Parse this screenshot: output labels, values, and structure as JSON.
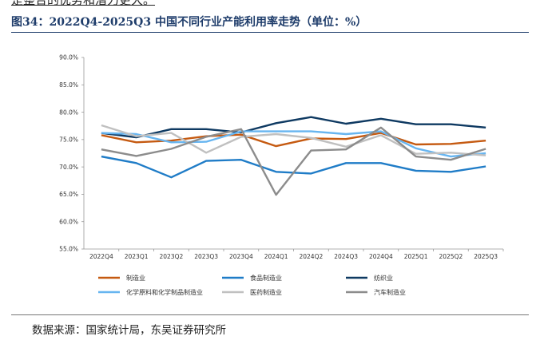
{
  "header": {
    "cut_text": "是整合的优势和潜力更大。",
    "title": "图34：2022Q4-2025Q3 中国不同行业产能利用率走势（单位：%）"
  },
  "footer": {
    "source": "数据来源：国家统计局，东吴证券研究所"
  },
  "chart_data": {
    "type": "line",
    "title": "2022Q4-2025Q3 中国不同行业产能利用率走势（单位：%）",
    "xlabel": "",
    "ylabel": "",
    "ylim": [
      55,
      90
    ],
    "ytick_values": [
      55,
      60,
      65,
      70,
      75,
      80,
      85,
      90
    ],
    "ytick_labels": [
      "55.0%",
      "60.0%",
      "65.0%",
      "70.0%",
      "75.0%",
      "80.0%",
      "85.0%",
      "90.0%"
    ],
    "grid": false,
    "legend_position": "bottom",
    "categories": [
      "2022Q4",
      "2023Q1",
      "2023Q2",
      "2023Q3",
      "2023Q4",
      "2024Q1",
      "2024Q2",
      "2024Q3",
      "2024Q4",
      "2025Q1",
      "2025Q2",
      "2025Q3"
    ],
    "series": [
      {
        "name": "制造业",
        "color": "#c55a11",
        "values": [
          75.8,
          74.5,
          74.8,
          75.6,
          75.9,
          73.8,
          75.2,
          75.1,
          76.2,
          74.1,
          74.2,
          74.8
        ]
      },
      {
        "name": "食品制造业",
        "color": "#1f7cc7",
        "values": [
          71.9,
          70.7,
          68.1,
          71.1,
          71.3,
          69.1,
          68.8,
          70.7,
          70.7,
          69.3,
          69.1,
          70.1
        ]
      },
      {
        "name": "纺织业",
        "color": "#0f3a62",
        "values": [
          76.2,
          75.4,
          76.9,
          76.9,
          76.3,
          78.0,
          79.1,
          77.9,
          78.8,
          77.8,
          77.8,
          77.2
        ]
      },
      {
        "name": "化学原料和化学制品制造业",
        "color": "#67b5f0",
        "values": [
          76.2,
          76.0,
          74.5,
          74.6,
          76.5,
          76.5,
          76.5,
          76.0,
          76.5,
          73.4,
          71.9,
          72.5
        ]
      },
      {
        "name": "医药制造业",
        "color": "#c0c0c0",
        "values": [
          77.6,
          75.6,
          76.2,
          72.6,
          75.5,
          76.0,
          75.3,
          73.7,
          75.8,
          72.4,
          72.6,
          72.1
        ]
      },
      {
        "name": "汽车制造业",
        "color": "#8c8c8c",
        "values": [
          73.2,
          72.0,
          73.3,
          75.5,
          76.9,
          64.9,
          73.0,
          73.2,
          77.2,
          71.9,
          71.3,
          73.3
        ]
      }
    ]
  }
}
